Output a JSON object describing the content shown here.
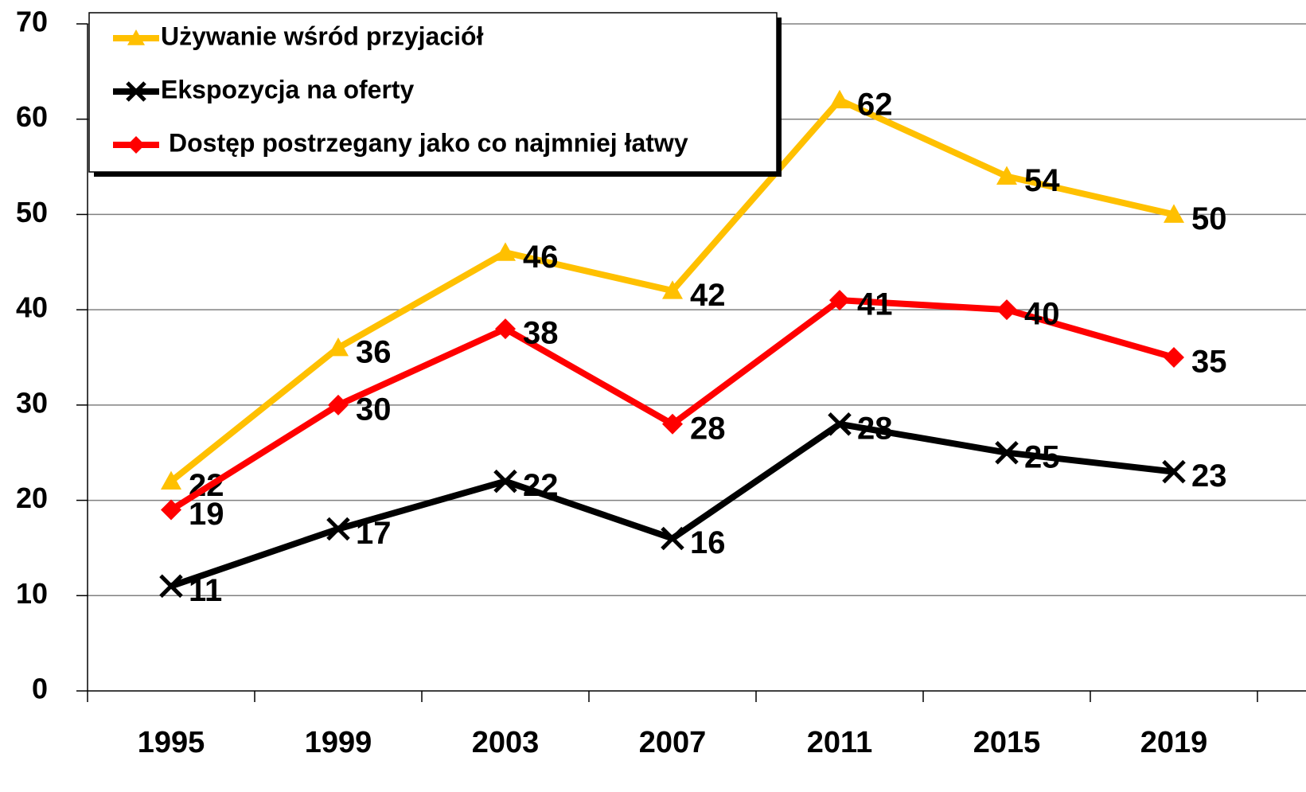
{
  "chart_data": {
    "type": "line",
    "categories": [
      "1995",
      "1999",
      "2003",
      "2007",
      "2011",
      "2015",
      "2019"
    ],
    "series": [
      {
        "name": "Używanie wśród przyjaciół",
        "color": "#FFC000",
        "marker": "triangle",
        "values": [
          22,
          36,
          46,
          42,
          62,
          54,
          50
        ]
      },
      {
        "name": "Ekspozycja na oferty",
        "color": "#000000",
        "marker": "x",
        "values": [
          11,
          17,
          22,
          16,
          28,
          25,
          23
        ]
      },
      {
        "name": "Dostęp postrzegany jako co najmniej łatwy",
        "color": "#FF0000",
        "marker": "diamond",
        "values": [
          19,
          30,
          38,
          28,
          41,
          40,
          35
        ]
      }
    ],
    "ylim": [
      0,
      70
    ],
    "yticks": [
      0,
      10,
      20,
      30,
      40,
      50,
      60,
      70
    ],
    "grid": true,
    "legend": "top-left"
  }
}
